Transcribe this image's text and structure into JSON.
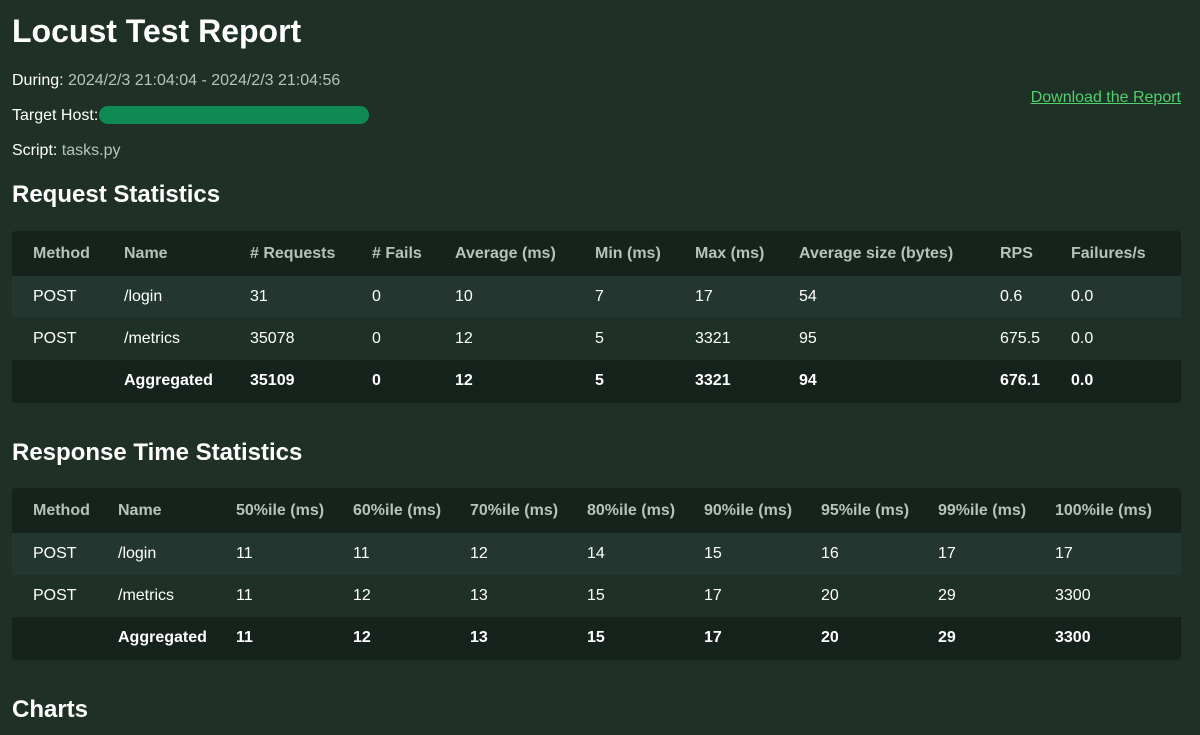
{
  "report": {
    "title": "Locust Test Report",
    "during_label": "During:",
    "during_value": "2024/2/3 21:04:04 - 2024/2/3 21:04:56",
    "host_label": "Target Host:",
    "script_label": "Script:",
    "script_value": "tasks.py",
    "download_label": "Download the Report"
  },
  "request_stats": {
    "heading": "Request Statistics",
    "columns": [
      "Method",
      "Name",
      "# Requests",
      "# Fails",
      "Average (ms)",
      "Min (ms)",
      "Max (ms)",
      "Average size (bytes)",
      "RPS",
      "Failures/s"
    ],
    "rows": [
      [
        "POST",
        "/login",
        "31",
        "0",
        "10",
        "7",
        "17",
        "54",
        "0.6",
        "0.0"
      ],
      [
        "POST",
        "/metrics",
        "35078",
        "0",
        "12",
        "5",
        "3321",
        "95",
        "675.5",
        "0.0"
      ],
      [
        "",
        "Aggregated",
        "35109",
        "0",
        "12",
        "5",
        "3321",
        "94",
        "676.1",
        "0.0"
      ]
    ]
  },
  "response_stats": {
    "heading": "Response Time Statistics",
    "columns": [
      "Method",
      "Name",
      "50%ile (ms)",
      "60%ile (ms)",
      "70%ile (ms)",
      "80%ile (ms)",
      "90%ile (ms)",
      "95%ile (ms)",
      "99%ile (ms)",
      "100%ile (ms)"
    ],
    "rows": [
      [
        "POST",
        "/login",
        "11",
        "11",
        "12",
        "14",
        "15",
        "16",
        "17",
        "17"
      ],
      [
        "POST",
        "/metrics",
        "11",
        "12",
        "13",
        "15",
        "17",
        "20",
        "29",
        "3300"
      ],
      [
        "",
        "Aggregated",
        "11",
        "12",
        "13",
        "15",
        "17",
        "20",
        "29",
        "3300"
      ]
    ]
  },
  "charts": {
    "heading": "Charts"
  },
  "colors": {
    "background": "#1f3027",
    "link": "#4fd16b",
    "redaction": "#0f8a54"
  }
}
